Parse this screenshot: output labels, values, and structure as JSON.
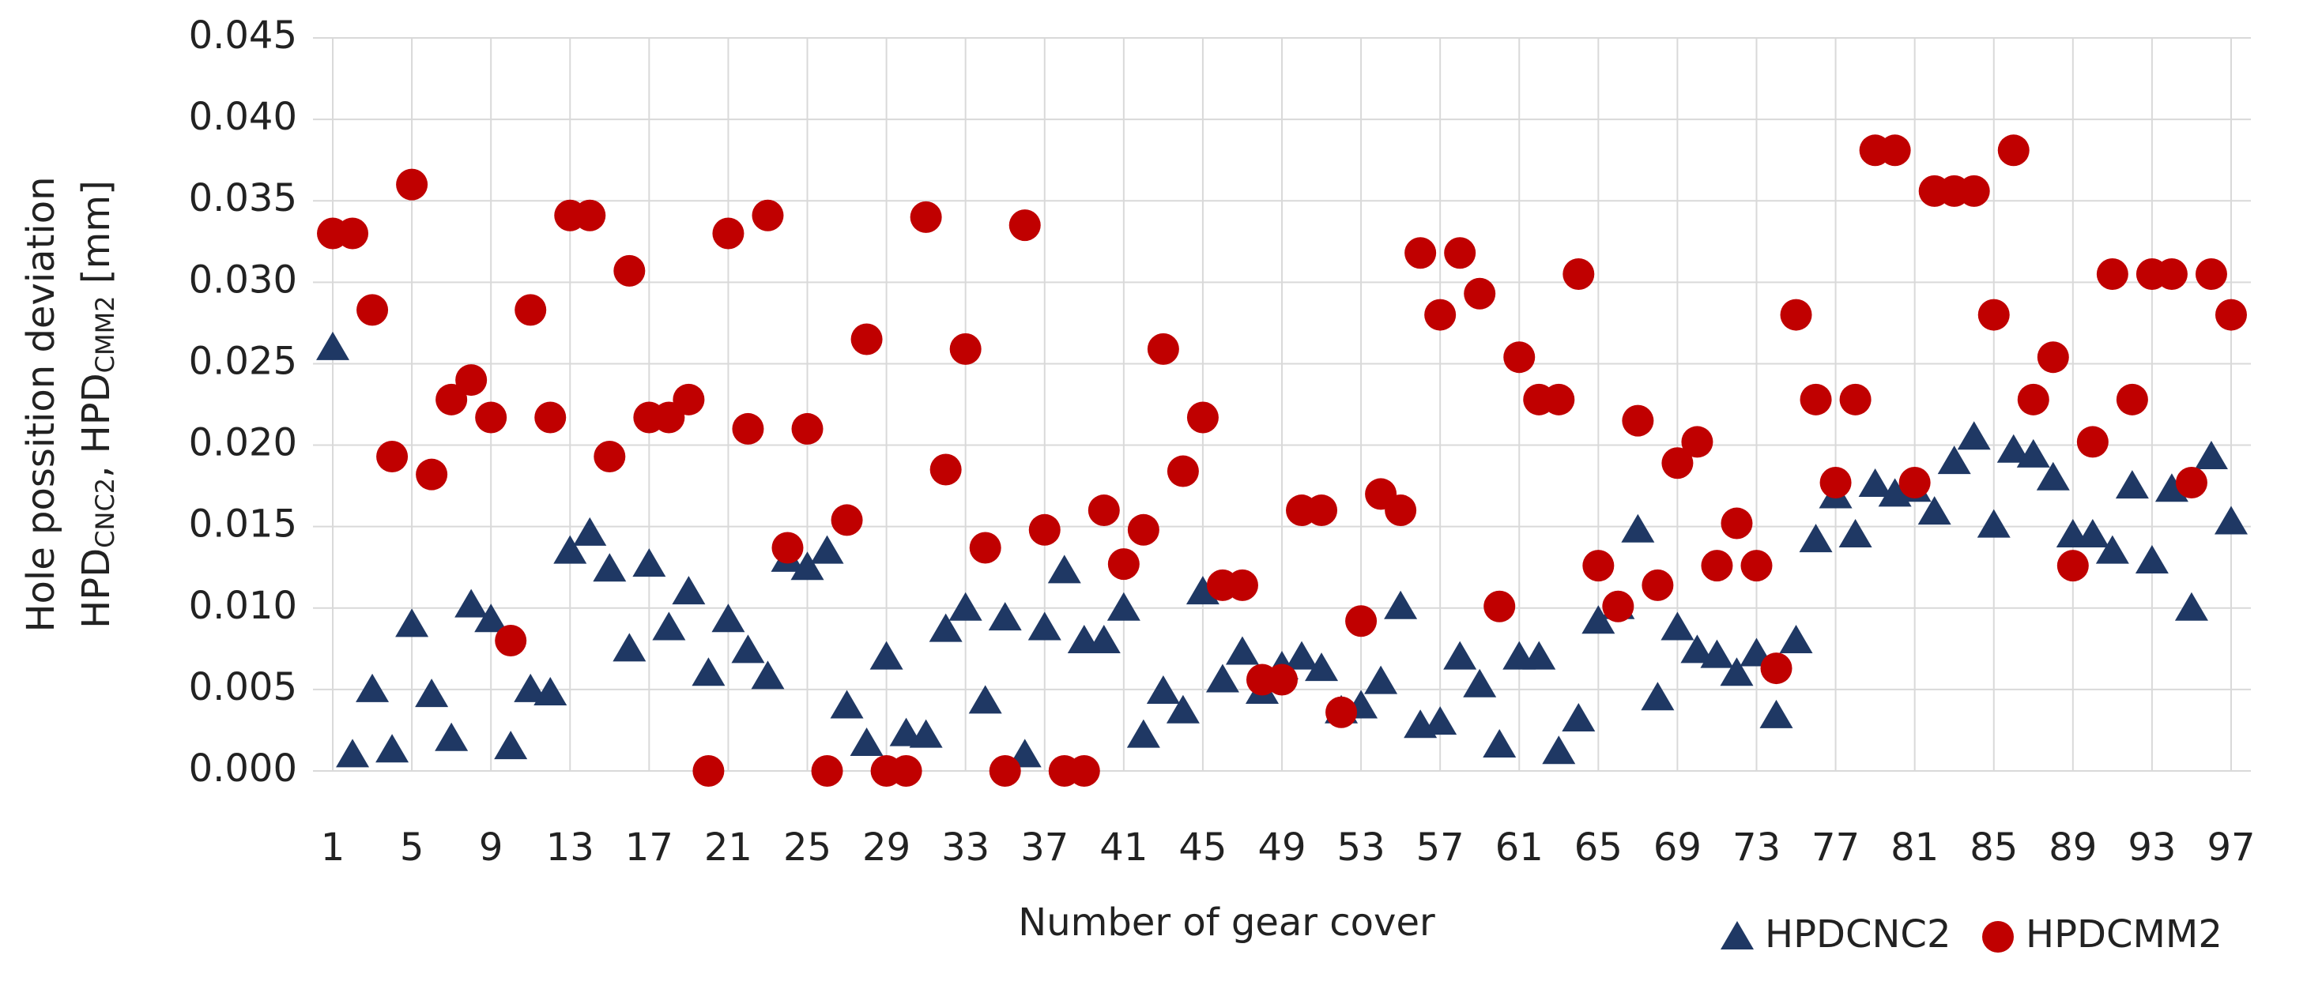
{
  "chart_data": {
    "type": "scatter",
    "x_label": "Number of gear cover",
    "y_label": [
      [
        {
          "text": "Hole possition deviation",
          "sub": false
        }
      ],
      [
        {
          "text": "HPD",
          "sub": false
        },
        {
          "text": "CNC2",
          "sub": true
        },
        {
          "text": ", HPD",
          "sub": false
        },
        {
          "text": "CMM2",
          "sub": true
        },
        {
          "text": " [mm]",
          "sub": false
        }
      ]
    ],
    "x": [
      1,
      2,
      3,
      4,
      5,
      6,
      7,
      8,
      9,
      10,
      11,
      12,
      13,
      14,
      15,
      16,
      17,
      18,
      19,
      20,
      21,
      22,
      23,
      24,
      25,
      26,
      27,
      28,
      29,
      30,
      31,
      32,
      33,
      34,
      35,
      36,
      37,
      38,
      39,
      40,
      41,
      42,
      43,
      44,
      45,
      46,
      47,
      48,
      49,
      50,
      51,
      52,
      53,
      54,
      55,
      56,
      57,
      58,
      59,
      60,
      61,
      62,
      63,
      64,
      65,
      66,
      67,
      68,
      69,
      70,
      71,
      72,
      73,
      74,
      75,
      76,
      77,
      78,
      79,
      80,
      81,
      82,
      83,
      84,
      85,
      86,
      87,
      88,
      89,
      90,
      91,
      92,
      93,
      94,
      95,
      96,
      97
    ],
    "series": [
      {
        "name": "HPDCNC2",
        "color": "#1f3864",
        "marker": "triangle",
        "values": [
          0.026,
          0.001,
          0.005,
          0.0013,
          0.009,
          0.0047,
          0.002,
          0.0102,
          0.0093,
          0.0015,
          0.005,
          0.0048,
          0.0135,
          0.0146,
          0.0124,
          0.0075,
          0.0127,
          0.0088,
          0.011,
          0.006,
          0.0093,
          0.0074,
          0.0058,
          0.013,
          0.0125,
          0.0135,
          0.004,
          0.0017,
          0.007,
          0.0023,
          0.0022,
          0.0087,
          0.01,
          0.0043,
          0.0094,
          0.001,
          0.0088,
          0.0123,
          0.008,
          0.008,
          0.01,
          0.0022,
          0.0049,
          0.0037,
          0.011,
          0.0056,
          0.0073,
          0.0049,
          0.0064,
          0.007,
          0.0063,
          0.0037,
          0.004,
          0.0055,
          0.0101,
          0.0028,
          0.003,
          0.007,
          0.0053,
          0.0016,
          0.007,
          0.007,
          0.0012,
          0.0032,
          0.0092,
          0.0101,
          0.0148,
          0.0045,
          0.0088,
          0.0074,
          0.0071,
          0.006,
          0.0072,
          0.0034,
          0.008,
          0.0142,
          0.0169,
          0.0145,
          0.0176,
          0.017,
          0.0173,
          0.0159,
          0.019,
          0.0205,
          0.0151,
          0.0197,
          0.0194,
          0.018,
          0.0145,
          0.0145,
          0.0135,
          0.0175,
          0.0129,
          0.0173,
          0.01,
          0.0193,
          0.0153
        ]
      },
      {
        "name": "HPDCMM2",
        "color": "#c00000",
        "marker": "circle",
        "values": [
          0.033,
          0.033,
          0.0283,
          0.0193,
          0.036,
          0.0182,
          0.0228,
          0.024,
          0.0217,
          0.008,
          0.0283,
          0.0217,
          0.0341,
          0.0341,
          0.0193,
          0.0307,
          0.0217,
          0.0217,
          0.0228,
          0,
          0.033,
          0.021,
          0.0341,
          0.0137,
          0.021,
          0,
          0.0154,
          0.0265,
          0,
          0,
          0.034,
          0.0185,
          0.0259,
          0.0137,
          0,
          0.0335,
          0.0148,
          0,
          0,
          0.016,
          0.0127,
          0.0148,
          0.0259,
          0.0184,
          0.0217,
          0.0114,
          0.0114,
          0.0056,
          0.0056,
          0.016,
          0.016,
          0.0036,
          0.0092,
          0.017,
          0.016,
          0.0318,
          0.028,
          0.0318,
          0.0293,
          0.0101,
          0.0254,
          0.0228,
          0.0228,
          0.0305,
          0.0126,
          0.0101,
          0.0215,
          0.0114,
          0.0189,
          0.0202,
          0.0126,
          0.0152,
          0.0126,
          0.0063,
          0.028,
          0.0228,
          0.0177,
          0.0228,
          0.0381,
          0.0381,
          0.0177,
          0.0356,
          0.0356,
          0.0356,
          0.028,
          0.0381,
          0.0228,
          0.0254,
          0.0126,
          0.0202,
          0.0305,
          0.0228,
          0.0305,
          0.0305,
          0.0177,
          0.0305,
          0.028
        ]
      }
    ],
    "xlim": [
      0,
      98
    ],
    "xticks": [
      1,
      5,
      9,
      13,
      17,
      21,
      25,
      29,
      33,
      37,
      41,
      45,
      49,
      53,
      57,
      61,
      65,
      69,
      73,
      77,
      81,
      85,
      89,
      93,
      97
    ],
    "ylim": [
      0,
      0.045
    ],
    "yticks": [
      {
        "value": 0,
        "label": "0.000"
      },
      {
        "value": 0.005,
        "label": "0.005"
      },
      {
        "value": 0.01,
        "label": "0.010"
      },
      {
        "value": 0.015,
        "label": "0.015"
      },
      {
        "value": 0.02,
        "label": "0.020"
      },
      {
        "value": 0.025,
        "label": "0.025"
      },
      {
        "value": 0.03,
        "label": "0.030"
      },
      {
        "value": 0.035,
        "label": "0.035"
      },
      {
        "value": 0.04,
        "label": "0.040"
      },
      {
        "value": 0.045,
        "label": "0.045"
      }
    ],
    "grid": true,
    "legend": "bottom-right"
  }
}
